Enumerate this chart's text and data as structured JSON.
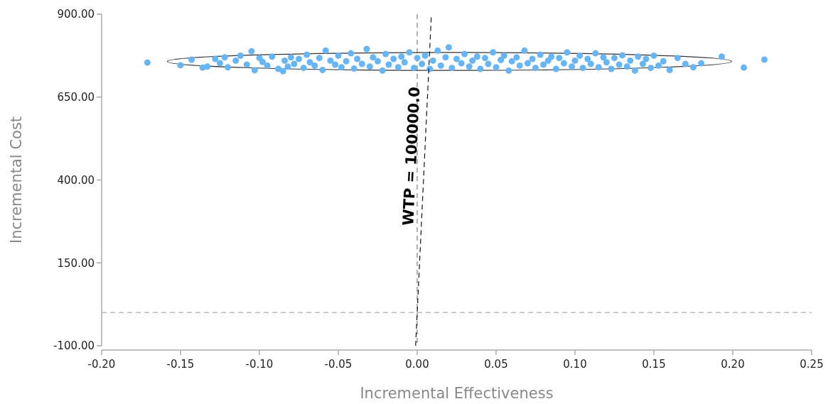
{
  "chart_data": {
    "type": "scatter",
    "xlabel": "Incremental Effectiveness",
    "ylabel": "Incremental Cost",
    "xlim": [
      -0.2,
      0.25
    ],
    "ylim": [
      -100,
      900
    ],
    "xticks": [
      {
        "value": -0.2,
        "label": "-0.20"
      },
      {
        "value": -0.15,
        "label": "-0.15"
      },
      {
        "value": -0.1,
        "label": "-0.10"
      },
      {
        "value": -0.05,
        "label": "-0.05"
      },
      {
        "value": 0,
        "label": "0.00"
      },
      {
        "value": 0.05,
        "label": "0.05"
      },
      {
        "value": 0.1,
        "label": "0.10"
      },
      {
        "value": 0.15,
        "label": "0.15"
      },
      {
        "value": 0.2,
        "label": "0.20"
      },
      {
        "value": 0.25,
        "label": "0.25"
      }
    ],
    "yticks": [
      {
        "value": -100,
        "label": "-100.00"
      },
      {
        "value": 150,
        "label": "150.00"
      },
      {
        "value": 400,
        "label": "400.00"
      },
      {
        "value": 650,
        "label": "650.00"
      },
      {
        "value": 900,
        "label": "900.00"
      }
    ],
    "marker": "circle",
    "ref_lines": [
      {
        "axis": "y",
        "value": 0,
        "color": "#bbbbbb",
        "line_style": "dashed"
      },
      {
        "axis": "x",
        "value": 0,
        "color": "#999999",
        "line_style": "dashed"
      }
    ],
    "annotations": [
      {
        "text": "WTP = 100000.0",
        "x": 0.004,
        "y": 470
      }
    ],
    "series": [
      {
        "type": "scatter",
        "color": "#66b5f7",
        "x": [
          -0.171,
          -0.15,
          -0.143,
          -0.136,
          -0.133,
          -0.128,
          -0.125,
          -0.122,
          -0.12,
          -0.115,
          -0.112,
          -0.108,
          -0.105,
          -0.103,
          -0.1,
          -0.098,
          -0.095,
          -0.092,
          -0.088,
          -0.085,
          -0.084,
          -0.082,
          -0.08,
          -0.078,
          -0.075,
          -0.072,
          -0.07,
          -0.068,
          -0.065,
          -0.062,
          -0.06,
          -0.058,
          -0.055,
          -0.052,
          -0.05,
          -0.048,
          -0.045,
          -0.042,
          -0.04,
          -0.038,
          -0.035,
          -0.032,
          -0.03,
          -0.028,
          -0.025,
          -0.022,
          -0.02,
          -0.018,
          -0.015,
          -0.012,
          -0.01,
          -0.008,
          -0.005,
          -0.002,
          0.0,
          0.003,
          0.005,
          0.008,
          0.01,
          0.013,
          0.015,
          0.018,
          0.02,
          0.022,
          0.025,
          0.028,
          0.03,
          0.033,
          0.035,
          0.038,
          0.04,
          0.043,
          0.045,
          0.048,
          0.05,
          0.053,
          0.055,
          0.058,
          0.06,
          0.063,
          0.065,
          0.068,
          0.07,
          0.073,
          0.075,
          0.078,
          0.08,
          0.083,
          0.085,
          0.088,
          0.09,
          0.093,
          0.095,
          0.098,
          0.1,
          0.103,
          0.105,
          0.108,
          0.11,
          0.113,
          0.115,
          0.118,
          0.12,
          0.123,
          0.125,
          0.128,
          0.13,
          0.133,
          0.135,
          0.138,
          0.14,
          0.143,
          0.145,
          0.148,
          0.15,
          0.153,
          0.156,
          0.16,
          0.165,
          0.17,
          0.175,
          0.18,
          0.193,
          0.207,
          0.22
        ],
        "values": [
          754,
          746,
          763,
          739,
          742,
          765,
          752,
          770,
          740,
          760,
          775,
          748,
          788,
          731,
          768,
          756,
          745,
          772,
          735,
          728,
          760,
          742,
          770,
          750,
          765,
          738,
          778,
          755,
          745,
          768,
          732,
          790,
          760,
          748,
          775,
          740,
          758,
          782,
          736,
          765,
          750,
          795,
          742,
          770,
          758,
          730,
          780,
          748,
          765,
          740,
          772,
          755,
          785,
          738,
          768,
          750,
          775,
          735,
          760,
          790,
          745,
          770,
          800,
          738,
          765,
          752,
          780,
          742,
          760,
          772,
          735,
          768,
          750,
          785,
          740,
          762,
          775,
          730,
          758,
          770,
          745,
          790,
          752,
          765,
          738,
          778,
          748,
          760,
          772,
          735,
          768,
          752,
          785,
          742,
          760,
          775,
          738,
          765,
          750,
          782,
          740,
          770,
          755,
          735,
          768,
          748,
          776,
          742,
          760,
          730,
          772,
          750,
          765,
          738,
          775,
          745,
          758,
          732,
          768,
          750,
          740,
          752,
          772,
          739,
          763
        ]
      },
      {
        "type": "line",
        "color": "#111111",
        "marker": "none",
        "line_style": "dashed",
        "x": [
          -0.001,
          0.009
        ],
        "values": [
          -100,
          900
        ]
      }
    ]
  }
}
